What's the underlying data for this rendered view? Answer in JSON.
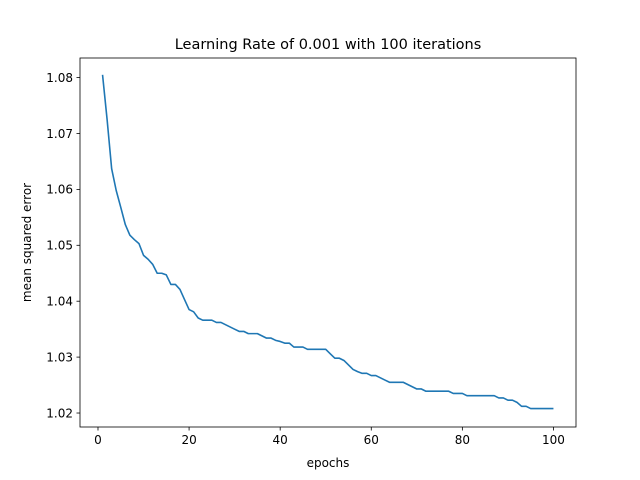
{
  "chart_data": {
    "type": "line",
    "title": "Learning Rate of 0.001 with 100 iterations",
    "xlabel": "epochs",
    "ylabel": "mean squared error",
    "xlim": [
      -3.95,
      104.95
    ],
    "ylim": [
      1.0175,
      1.0835
    ],
    "xticks": [
      0,
      20,
      40,
      60,
      80,
      100
    ],
    "yticks": [
      1.02,
      1.03,
      1.04,
      1.05,
      1.06,
      1.07,
      1.08
    ],
    "xtick_labels": [
      "0",
      "20",
      "40",
      "60",
      "80",
      "100"
    ],
    "ytick_labels": [
      "1.02",
      "1.03",
      "1.04",
      "1.05",
      "1.06",
      "1.07",
      "1.08"
    ],
    "grid": false,
    "series": [
      {
        "color": "#1f77b4",
        "x": [
          1,
          2,
          3,
          4,
          5,
          6,
          7,
          8,
          9,
          10,
          11,
          12,
          13,
          14,
          15,
          16,
          17,
          18,
          19,
          20,
          21,
          22,
          23,
          24,
          25,
          26,
          27,
          28,
          29,
          30,
          31,
          32,
          33,
          34,
          35,
          36,
          37,
          38,
          39,
          40,
          41,
          42,
          43,
          44,
          45,
          46,
          47,
          48,
          49,
          50,
          51,
          52,
          53,
          54,
          55,
          56,
          57,
          58,
          59,
          60,
          61,
          62,
          63,
          64,
          65,
          66,
          67,
          68,
          69,
          70,
          71,
          72,
          73,
          74,
          75,
          76,
          77,
          78,
          79,
          80,
          81,
          82,
          83,
          84,
          85,
          86,
          87,
          88,
          89,
          90,
          91,
          92,
          93,
          94,
          95,
          96,
          97,
          98,
          99,
          100
        ],
        "y": [
          1.0805,
          1.0725,
          1.0637,
          1.0598,
          1.0568,
          1.0537,
          1.0518,
          1.051,
          1.0503,
          1.0482,
          1.0475,
          1.0466,
          1.045,
          1.045,
          1.0447,
          1.043,
          1.043,
          1.0421,
          1.0403,
          1.0385,
          1.0381,
          1.037,
          1.0366,
          1.0366,
          1.0366,
          1.0362,
          1.0362,
          1.0358,
          1.0354,
          1.035,
          1.0346,
          1.0346,
          1.0342,
          1.0342,
          1.0342,
          1.0338,
          1.0334,
          1.0334,
          1.033,
          1.0328,
          1.0325,
          1.0325,
          1.0318,
          1.0318,
          1.0318,
          1.0314,
          1.0314,
          1.0314,
          1.0314,
          1.0314,
          1.0306,
          1.0298,
          1.0298,
          1.0294,
          1.0286,
          1.0278,
          1.0274,
          1.0271,
          1.0271,
          1.0267,
          1.0267,
          1.0263,
          1.0259,
          1.0255,
          1.0255,
          1.0255,
          1.0255,
          1.0251,
          1.0247,
          1.0243,
          1.0243,
          1.0239,
          1.0239,
          1.0239,
          1.0239,
          1.0239,
          1.0239,
          1.0235,
          1.0235,
          1.0235,
          1.0231,
          1.0231,
          1.0231,
          1.0231,
          1.0231,
          1.0231,
          1.0231,
          1.0227,
          1.0227,
          1.0223,
          1.0223,
          1.0219,
          1.0212,
          1.0212,
          1.0208,
          1.0208,
          1.0208,
          1.0208,
          1.0208,
          1.0208
        ]
      }
    ]
  }
}
